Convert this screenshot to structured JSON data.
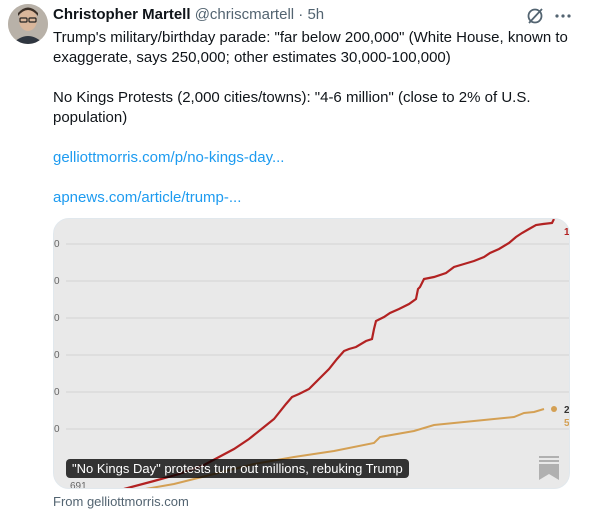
{
  "tweet": {
    "author_name": "Christopher Martell",
    "handle": "@chriscmartell",
    "separator": "·",
    "time": "5h",
    "line1": "Trump's military/birthday parade: \"far below 200,000\" (White House, known to exaggerate, says 250,000; other estimates 30,000-100,000)",
    "line2": "No Kings Protests (2,000 cities/towns): \"4-6 million\" (close to 2% of U.S. population)",
    "link1": "gelliottmorris.com/p/no-kings-day...",
    "link2": "apnews.com/article/trump-..."
  },
  "card": {
    "title": "\"No Kings Day\" protests turn out millions, rebuking Trump",
    "source": "From gelliottmorris.com",
    "tick_labels": [
      "0",
      "0",
      "0",
      "0",
      "0",
      "0"
    ],
    "start_label": "691",
    "end_label_red": "1",
    "end_label_gold_a": "2",
    "end_label_gold_b": "5"
  },
  "colors": {
    "red_series": "#b22222",
    "gold_series": "#d4a054",
    "link": "#1d9bf0"
  },
  "icons": {
    "grok": "grok-icon",
    "more": "more-icon",
    "bookmark": "bookmark-icon"
  }
}
